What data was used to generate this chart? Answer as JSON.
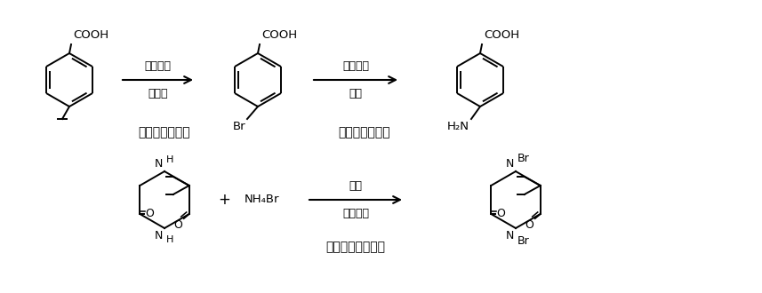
{
  "background_color": "#ffffff",
  "text_color": "#000000",
  "figsize": [
    8.57,
    3.3
  ],
  "dpi": 100,
  "step1_label": "第一步溴代反应",
  "step2_label": "第二步氨化反应",
  "step3_label": "溴代试剂合成反应",
  "arrow1_top": "二溴海因",
  "arrow1_bottom": "引发剂",
  "arrow2_top": "碳酸氢铵",
  "arrow2_bottom": "氨水",
  "arrow3_top": "盐酸",
  "arrow3_bottom": "过氧化氢"
}
